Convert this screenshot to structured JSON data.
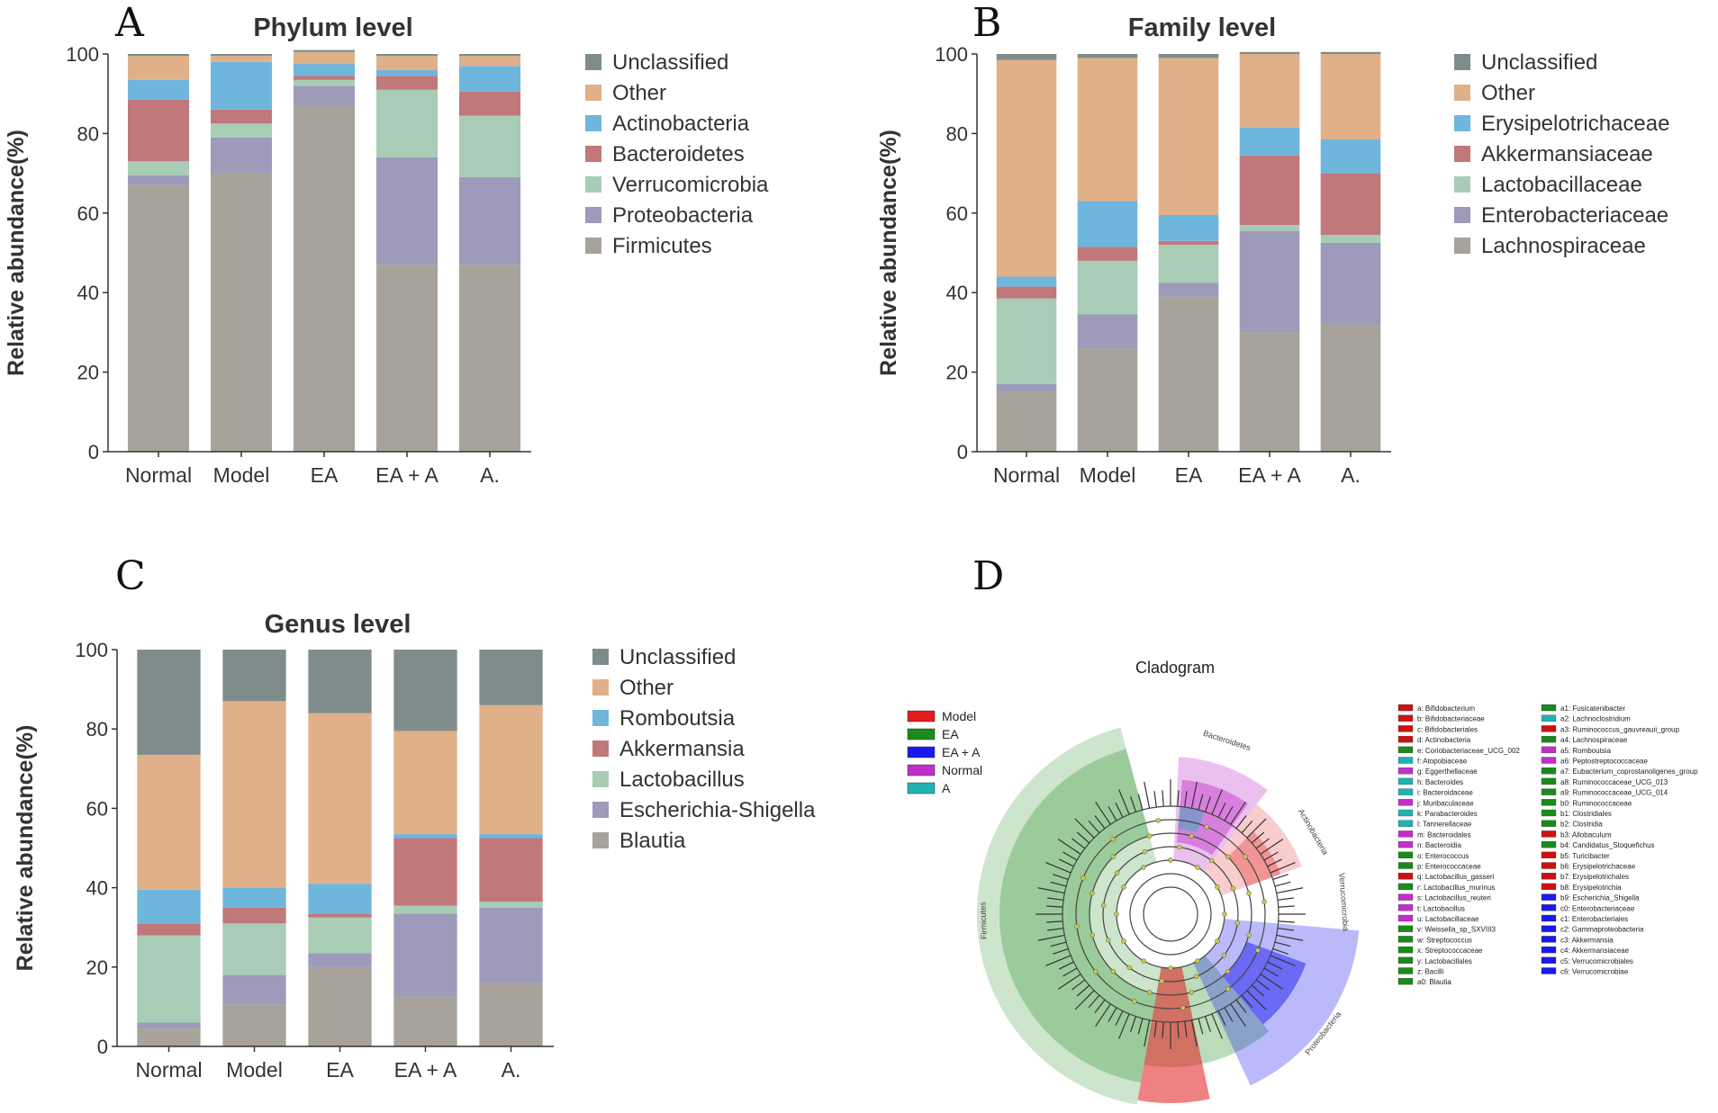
{
  "colors": {
    "Unclassified": "#7f8c8b",
    "Other": "#e0b088",
    "Actinobacteria": "#6eb6dc",
    "Bacteroidetes": "#c0787a",
    "Verrucomicrobia": "#a8ccb5",
    "Proteobacteria": "#9d9aba",
    "Firmicutes": "#a8a39a",
    "Erysipelotrichaceae": "#6eb6dc",
    "Akkermansiaceae": "#c0787a",
    "Lactobacillaceae": "#a8ccb5",
    "Enterobacteriaceae": "#9d9aba",
    "Lachnospiraceae": "#a8a39a",
    "Romboutsia": "#6eb6dc",
    "Akkermansia": "#c0787a",
    "Lactobacillus": "#a8ccb5",
    "Escherichia-Shigella": "#9d9aba",
    "Blautia": "#a8a39a"
  },
  "chart_data": [
    {
      "panel": "A",
      "type": "bar",
      "stacked": true,
      "title": "Phylum level",
      "ylabel": "Relative abundance(%)",
      "ylim": [
        0,
        100
      ],
      "yticks": [
        "0",
        "20",
        "40",
        "60",
        "80",
        "100"
      ],
      "categories": [
        "Normal",
        "Model",
        "EA",
        "EA + A",
        "A."
      ],
      "series": [
        {
          "name": "Firmicutes",
          "values": [
            67,
            70,
            87,
            47,
            47
          ]
        },
        {
          "name": "Proteobacteria",
          "values": [
            2.5,
            9,
            5,
            27,
            22
          ]
        },
        {
          "name": "Verrucomicrobia",
          "values": [
            3.5,
            3.5,
            1.5,
            17,
            15.5
          ]
        },
        {
          "name": "Bacteroidetes",
          "values": [
            15.5,
            3.5,
            1,
            3.5,
            6
          ]
        },
        {
          "name": "Actinobacteria",
          "values": [
            5,
            12,
            3,
            1.5,
            6.5
          ]
        },
        {
          "name": "Other",
          "values": [
            6,
            1.5,
            3,
            3.5,
            2.5
          ]
        },
        {
          "name": "Unclassified",
          "values": [
            0.5,
            0.5,
            0.5,
            0.5,
            0.5
          ]
        }
      ],
      "legend": [
        "Unclassified",
        "Other",
        "Actinobacteria",
        "Bacteroidetes",
        "Verrucomicrobia",
        "Proteobacteria",
        "Firmicutes"
      ]
    },
    {
      "panel": "B",
      "type": "bar",
      "stacked": true,
      "title": "Family level",
      "ylabel": "Relative abundance(%)",
      "ylim": [
        0,
        100
      ],
      "yticks": [
        "0",
        "20",
        "40",
        "60",
        "80",
        "100"
      ],
      "categories": [
        "Normal",
        "Model",
        "EA",
        "EA + A",
        "A."
      ],
      "series": [
        {
          "name": "Lachnospiraceae",
          "values": [
            15,
            26,
            39,
            30,
            32
          ]
        },
        {
          "name": "Enterobacteriaceae",
          "values": [
            2,
            8.5,
            3.5,
            25.5,
            20.5
          ]
        },
        {
          "name": "Lactobacillaceae",
          "values": [
            21.5,
            13.5,
            9.5,
            1.5,
            2
          ]
        },
        {
          "name": "Akkermansiaceae",
          "values": [
            3,
            3.5,
            1,
            17.5,
            15.5
          ]
        },
        {
          "name": "Erysipelotrichaceae",
          "values": [
            2.5,
            11.5,
            6.5,
            7,
            8.5
          ]
        },
        {
          "name": "Other",
          "values": [
            54.5,
            36,
            39.5,
            18.5,
            21.5
          ]
        },
        {
          "name": "Unclassified",
          "values": [
            1.5,
            1,
            1,
            0.5,
            0.5
          ]
        }
      ],
      "legend": [
        "Unclassified",
        "Other",
        "Erysipelotrichaceae",
        "Akkermansiaceae",
        "Lactobacillaceae",
        "Enterobacteriaceae",
        "Lachnospiraceae"
      ]
    },
    {
      "panel": "C",
      "type": "bar",
      "stacked": true,
      "title": "Genus level",
      "ylabel": "Relative abundance(%)",
      "ylim": [
        0,
        100
      ],
      "yticks": [
        "0",
        "20",
        "40",
        "60",
        "80",
        "100"
      ],
      "categories": [
        "Normal",
        "Model",
        "EA",
        "EA + A",
        "A."
      ],
      "series": [
        {
          "name": "Blautia",
          "values": [
            4.5,
            10.5,
            20,
            12.5,
            16
          ]
        },
        {
          "name": "Escherichia-Shigella",
          "values": [
            1.5,
            7.5,
            3.5,
            21,
            19
          ]
        },
        {
          "name": "Lactobacillus",
          "values": [
            22,
            13,
            9,
            2,
            1.5
          ]
        },
        {
          "name": "Akkermansia",
          "values": [
            3,
            4,
            1,
            17,
            16
          ]
        },
        {
          "name": "Romboutsia",
          "values": [
            8.5,
            5,
            7.5,
            1,
            1
          ]
        },
        {
          "name": "Other",
          "values": [
            34,
            47,
            43,
            26,
            32.5
          ]
        },
        {
          "name": "Unclassified",
          "values": [
            26.5,
            13,
            16,
            20.5,
            14
          ]
        }
      ],
      "legend": [
        "Unclassified",
        "Other",
        "Romboutsia",
        "Akkermansia",
        "Lactobacillus",
        "Escherichia-Shigella",
        "Blautia"
      ]
    }
  ],
  "panels": {
    "a": "A",
    "b": "B",
    "c": "C",
    "d": "D"
  },
  "cladogram": {
    "title": "Cladogram",
    "groups": [
      {
        "name": "Model",
        "color": "#e41a1c"
      },
      {
        "name": "EA",
        "color": "#1a8a1a"
      },
      {
        "name": "EA + A",
        "color": "#1a1aee"
      },
      {
        "name": "Normal",
        "color": "#c030c8"
      },
      {
        "name": "A",
        "color": "#20b2b2"
      }
    ],
    "taxa_col1": [
      "a: Bifidobacterium",
      "b: Bifidobacteriaceae",
      "c: Bifidobacteriales",
      "d: Actinobacteria",
      "e: Coriobacteriaceae_UCG_002",
      "f: Atopobiaceae",
      "g: Eggerthellaceae",
      "h: Bacteroides",
      "i: Bacteroidaceae",
      "j: Muribaculaceae",
      "k: Parabacteroides",
      "l: Tannerellaceae",
      "m: Bacteroidales",
      "n: Bacteroidia",
      "o: Enterococcus",
      "p: Enterococcaceae",
      "q: Lactobacillus_gasseri",
      "r: Lactobacillus_murinus",
      "s: Lactobacillus_reuteri",
      "t: Lactobacillus",
      "u: Lactobacillaceae",
      "v: Weissella_sp_SXVIII3",
      "w: Streptococcus",
      "x: Streptococcaceae",
      "y: Lactobacillales",
      "z: Bacilli",
      "a0: Blautia"
    ],
    "taxa_col1_colors": [
      "#cc1111",
      "#cc1111",
      "#cc1111",
      "#cc1111",
      "#1a8a1a",
      "#20b2b2",
      "#c030c8",
      "#20b2b2",
      "#20b2b2",
      "#c030c8",
      "#20b2b2",
      "#20b2b2",
      "#c030c8",
      "#c030c8",
      "#1a8a1a",
      "#1a8a1a",
      "#cc1111",
      "#1a8a1a",
      "#c030c8",
      "#c030c8",
      "#c030c8",
      "#1a8a1a",
      "#1a8a1a",
      "#1a8a1a",
      "#1a8a1a",
      "#1a8a1a",
      "#1a8a1a"
    ],
    "taxa_col2": [
      "a1: Fusicatenibacter",
      "a2: Lachnoclostridium",
      "a3: Ruminococcus_gauvreauii_group",
      "a4: Lachnospiraceae",
      "a5: Romboutsia",
      "a6: Peptostreptococcaceae",
      "a7: Eubacterium_coprostanoligenes_group",
      "a8: Ruminococcaceae_UCG_013",
      "a9: Ruminococcaceae_UCG_014",
      "b0: Ruminococcaceae",
      "b1: Clostridiales",
      "b2: Clostridia",
      "b3: Allobaculum",
      "b4: Candidatus_Stoquefichus",
      "b5: Turicibacter",
      "b6: Erysipelotrichaceae",
      "b7: Erysipelotrichales",
      "b8: Erysipelotrichia",
      "b9: Escherichia_Shigella",
      "c0: Enterobacteriaceae",
      "c1: Enterobacteriales",
      "c2: Gammaproteobacteria",
      "c3: Akkermansia",
      "c4: Akkermansiaceae",
      "c5: Verrucomicrobiales",
      "c6: Verrucomicrobiae"
    ],
    "taxa_col2_colors": [
      "#1a8a1a",
      "#20b2b2",
      "#cc1111",
      "#1a8a1a",
      "#c030c8",
      "#c030c8",
      "#1a8a1a",
      "#1a8a1a",
      "#1a8a1a",
      "#1a8a1a",
      "#1a8a1a",
      "#1a8a1a",
      "#cc1111",
      "#1a8a1a",
      "#cc1111",
      "#cc1111",
      "#cc1111",
      "#cc1111",
      "#1a1aee",
      "#1a1aee",
      "#1a1aee",
      "#1a1aee",
      "#1a1aee",
      "#1a1aee",
      "#1a1aee",
      "#1a1aee"
    ],
    "sector_labels": [
      "Bacteroidetes",
      "Actinobacteria",
      "Verrucomicrobia",
      "Proteobacteria",
      "Firmicutes"
    ]
  }
}
